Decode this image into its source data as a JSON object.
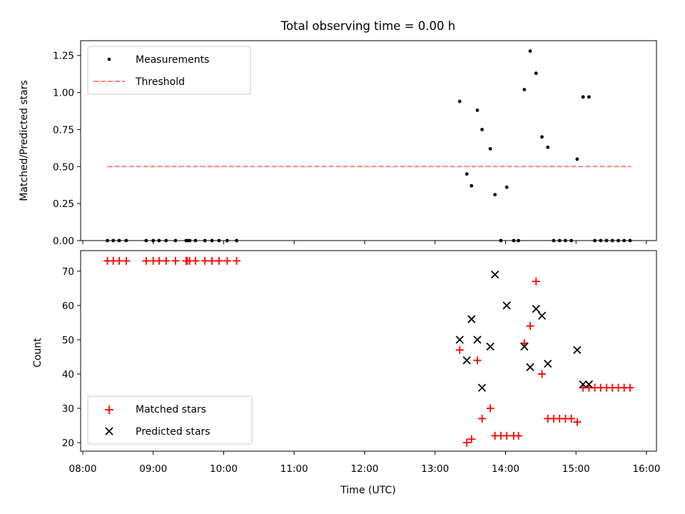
{
  "chart_data": [
    {
      "type": "scatter",
      "title": "Total observing time = 0.00 h",
      "xlabel": "",
      "ylabel": "Matched/Predicted stars",
      "xlim": [
        "08:00",
        "16:00"
      ],
      "ylim": [
        0,
        1.35
      ],
      "yticks": [
        "0.00",
        "0.25",
        "0.50",
        "0.75",
        "1.00",
        "1.25"
      ],
      "legend": {
        "placement": "top-left",
        "entries": [
          "Measurements",
          "Threshold"
        ]
      },
      "threshold": {
        "name": "Threshold",
        "value": 0.5,
        "x_start": "08:21",
        "x_end": "15:47",
        "color": "#ff7f7f",
        "style": "dashed"
      },
      "series": [
        {
          "name": "Measurements",
          "color": "#000000",
          "points": [
            [
              "08:21",
              0
            ],
            [
              "08:26",
              0
            ],
            [
              "08:31",
              0
            ],
            [
              "08:37",
              0
            ],
            [
              "08:54",
              0
            ],
            [
              "09:00",
              0
            ],
            [
              "09:05",
              0
            ],
            [
              "09:11",
              0
            ],
            [
              "09:19",
              0
            ],
            [
              "09:29",
              0
            ],
            [
              "09:28",
              0
            ],
            [
              "09:31",
              0
            ],
            [
              "09:36",
              0
            ],
            [
              "09:44",
              0
            ],
            [
              "09:50",
              0
            ],
            [
              "09:56",
              0
            ],
            [
              "10:03",
              0
            ],
            [
              "10:11",
              0
            ],
            [
              "13:21",
              0.94
            ],
            [
              "13:27",
              0.45
            ],
            [
              "13:31",
              0.37
            ],
            [
              "13:36",
              0.88
            ],
            [
              "13:40",
              0.75
            ],
            [
              "13:47",
              0.62
            ],
            [
              "13:51",
              0.31
            ],
            [
              "13:56",
              0
            ],
            [
              "14:01",
              0.36
            ],
            [
              "14:07",
              0
            ],
            [
              "14:11",
              0
            ],
            [
              "14:16",
              1.02
            ],
            [
              "14:21",
              1.28
            ],
            [
              "14:26",
              1.13
            ],
            [
              "14:31",
              0.7
            ],
            [
              "14:36",
              0.63
            ],
            [
              "14:41",
              0
            ],
            [
              "14:46",
              0
            ],
            [
              "14:51",
              0
            ],
            [
              "14:56",
              0
            ],
            [
              "15:01",
              0.55
            ],
            [
              "15:06",
              0.97
            ],
            [
              "15:11",
              0.97
            ],
            [
              "15:16",
              0
            ],
            [
              "15:21",
              0
            ],
            [
              "15:26",
              0
            ],
            [
              "15:31",
              0
            ],
            [
              "15:36",
              0
            ],
            [
              "15:41",
              0
            ],
            [
              "15:46",
              0
            ]
          ]
        }
      ]
    },
    {
      "type": "scatter",
      "title": "",
      "xlabel": "Time (UTC)",
      "ylabel": "Count",
      "xlim": [
        "08:00",
        "16:00"
      ],
      "ylim": [
        17.5,
        76
      ],
      "xticks": [
        "08:00",
        "09:00",
        "10:00",
        "11:00",
        "12:00",
        "13:00",
        "14:00",
        "15:00",
        "16:00"
      ],
      "yticks": [
        "20",
        "30",
        "40",
        "50",
        "60",
        "70"
      ],
      "legend": {
        "placement": "bottom-left",
        "entries": [
          "Matched stars",
          "Predicted stars"
        ]
      },
      "series": [
        {
          "name": "Matched stars",
          "color": "#ff0000",
          "marker": "plus",
          "points": [
            [
              "08:21",
              73
            ],
            [
              "08:26",
              73
            ],
            [
              "08:31",
              73
            ],
            [
              "08:37",
              73
            ],
            [
              "08:54",
              73
            ],
            [
              "09:00",
              73
            ],
            [
              "09:05",
              73
            ],
            [
              "09:11",
              73
            ],
            [
              "09:19",
              73
            ],
            [
              "09:29",
              73
            ],
            [
              "09:28",
              73
            ],
            [
              "09:31",
              73
            ],
            [
              "09:36",
              73
            ],
            [
              "09:44",
              73
            ],
            [
              "09:50",
              73
            ],
            [
              "09:56",
              73
            ],
            [
              "10:03",
              73
            ],
            [
              "10:11",
              73
            ],
            [
              "13:21",
              47
            ],
            [
              "13:27",
              20
            ],
            [
              "13:31",
              21
            ],
            [
              "13:36",
              44
            ],
            [
              "13:40",
              27
            ],
            [
              "13:47",
              30
            ],
            [
              "13:51",
              22
            ],
            [
              "13:56",
              22
            ],
            [
              "14:01",
              22
            ],
            [
              "14:07",
              22
            ],
            [
              "14:11",
              22
            ],
            [
              "14:16",
              49
            ],
            [
              "14:21",
              54
            ],
            [
              "14:26",
              67
            ],
            [
              "14:31",
              40
            ],
            [
              "14:36",
              27
            ],
            [
              "14:41",
              27
            ],
            [
              "14:46",
              27
            ],
            [
              "14:51",
              27
            ],
            [
              "14:56",
              27
            ],
            [
              "15:01",
              26
            ],
            [
              "15:06",
              36
            ],
            [
              "15:11",
              36
            ],
            [
              "15:16",
              36
            ],
            [
              "15:21",
              36
            ],
            [
              "15:26",
              36
            ],
            [
              "15:31",
              36
            ],
            [
              "15:36",
              36
            ],
            [
              "15:41",
              36
            ],
            [
              "15:46",
              36
            ]
          ]
        },
        {
          "name": "Predicted stars",
          "color": "#000000",
          "marker": "x",
          "points": [
            [
              "13:21",
              50
            ],
            [
              "13:27",
              44
            ],
            [
              "13:31",
              56
            ],
            [
              "13:36",
              50
            ],
            [
              "13:40",
              36
            ],
            [
              "13:47",
              48
            ],
            [
              "13:51",
              69
            ],
            [
              "14:01",
              60
            ],
            [
              "14:16",
              48
            ],
            [
              "14:21",
              42
            ],
            [
              "14:26",
              59
            ],
            [
              "14:31",
              57
            ],
            [
              "14:36",
              43
            ],
            [
              "15:01",
              47
            ],
            [
              "15:06",
              37
            ],
            [
              "15:11",
              37
            ]
          ]
        }
      ]
    }
  ]
}
